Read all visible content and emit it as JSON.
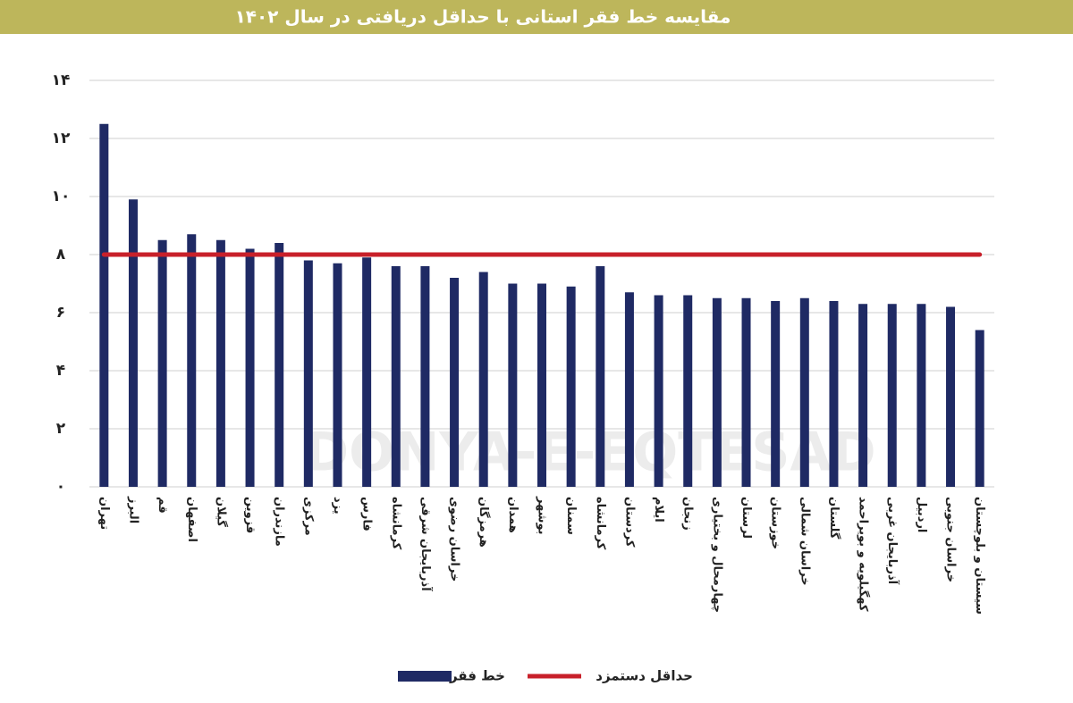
{
  "chart_data": {
    "type": "bar",
    "title": "مقایسه خط فقر استانی با حداقل دریافتی در سال ۱۴۰۲",
    "watermark": "DONYA-E-EQTESAD",
    "categories": [
      "تهران",
      "البرز",
      "قم",
      "اصفهان",
      "گیلان",
      "قزوین",
      "مازندران",
      "مرکزی",
      "یزد",
      "فارس",
      "کرمانشاه",
      "آذربایجان شرقی",
      "خراسان رضوی",
      "هرمزگان",
      "همدان",
      "بوشهر",
      "سمنان",
      "کرمانشاه",
      "کردستان",
      "ایلام",
      "زنجان",
      "چهارمحال و بختیاری",
      "لرستان",
      "خوزستان",
      "خراسان شمالی",
      "گلستان",
      "کهگیلویه و بویراحمد",
      "آذربایجان غربی",
      "اردبیل",
      "خراسان جنوبی",
      "سیستان و بلوچستان"
    ],
    "series": [
      {
        "name": "خط فقر",
        "color": "#1f2a64",
        "values": [
          12.5,
          9.9,
          8.5,
          8.7,
          8.5,
          8.2,
          8.4,
          7.8,
          7.7,
          7.9,
          7.6,
          7.6,
          7.2,
          7.4,
          7.0,
          7.0,
          6.9,
          7.6,
          6.7,
          6.6,
          6.6,
          6.5,
          6.5,
          6.4,
          6.5,
          6.4,
          6.3,
          6.3,
          6.3,
          6.2,
          5.4
        ]
      }
    ],
    "reference_line": {
      "name": "حداقل دستمزد",
      "value": 8,
      "color": "#c8202a"
    },
    "ylim": [
      0,
      14
    ],
    "yticks": [
      {
        "value": 0,
        "label": "۰"
      },
      {
        "value": 2,
        "label": "۲"
      },
      {
        "value": 4,
        "label": "۴"
      },
      {
        "value": 6,
        "label": "۶"
      },
      {
        "value": 8,
        "label": "۸"
      },
      {
        "value": 10,
        "label": "۱۰"
      },
      {
        "value": 12,
        "label": "۱۲"
      },
      {
        "value": 14,
        "label": "۱۴"
      }
    ],
    "grid": true
  }
}
